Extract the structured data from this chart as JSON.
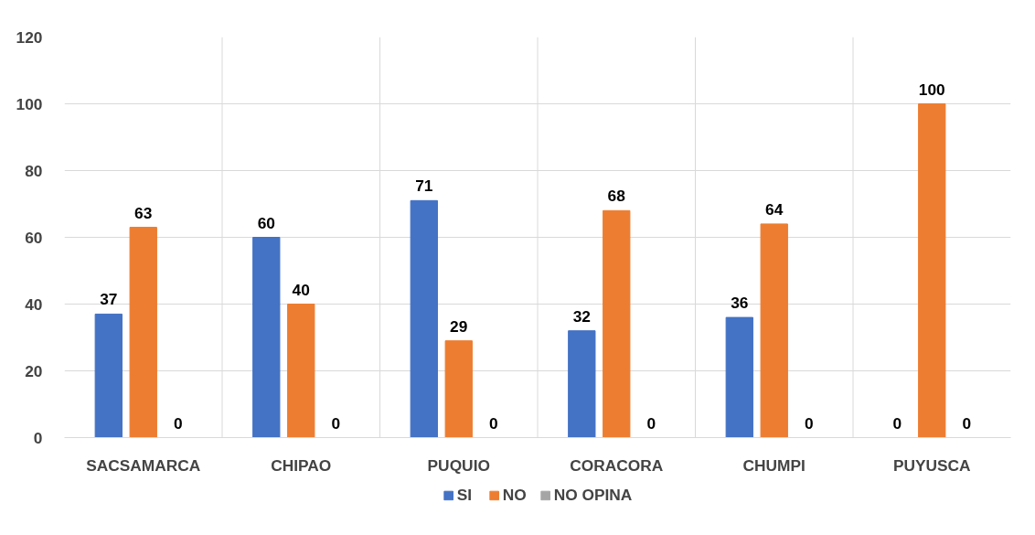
{
  "chart_data": {
    "type": "bar",
    "categories": [
      "SACSAMARCA",
      "CHIPAO",
      "PUQUIO",
      "CORACORA",
      "CHUMPI",
      "PUYUSCA"
    ],
    "series": [
      {
        "name": "SI",
        "color": "#4472c4",
        "values": [
          37,
          60,
          71,
          32,
          36,
          0
        ]
      },
      {
        "name": "NO",
        "color": "#ed7d31",
        "values": [
          63,
          40,
          29,
          68,
          64,
          100
        ]
      },
      {
        "name": "NO OPINA",
        "color": "#a5a5a5",
        "values": [
          0,
          0,
          0,
          0,
          0,
          0
        ]
      }
    ],
    "ylim": [
      0,
      120
    ],
    "yticks": [
      0,
      20,
      40,
      60,
      80,
      100,
      120
    ],
    "grid": true,
    "legend": "bottom",
    "data_labels": true
  }
}
